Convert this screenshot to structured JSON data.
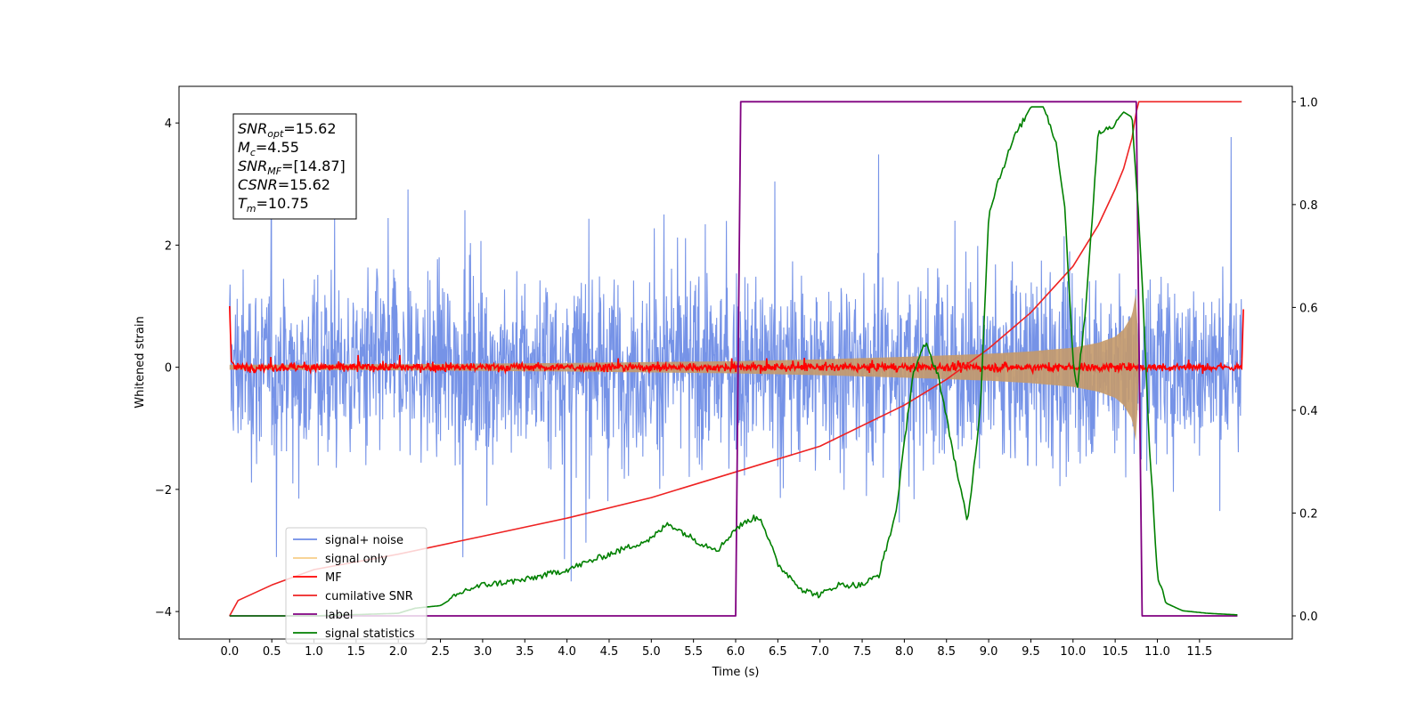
{
  "chart_data": {
    "type": "line",
    "xlabel": "Time (s)",
    "ylabel": "Whitened strain",
    "xlim": [
      -0.6,
      12.6
    ],
    "ylim": [
      -4.45,
      4.6
    ],
    "y2lim": [
      -0.045,
      1.03
    ],
    "xticks": [
      0.0,
      0.5,
      1.0,
      1.5,
      2.0,
      2.5,
      3.0,
      3.5,
      4.0,
      4.5,
      5.0,
      5.5,
      6.0,
      6.5,
      7.0,
      7.5,
      8.0,
      8.5,
      9.0,
      9.5,
      10.0,
      10.5,
      11.0,
      11.5
    ],
    "xtick_labels": [
      "0.0",
      "0.5",
      "1.0",
      "1.5",
      "2.0",
      "2.5",
      "3.0",
      "3.5",
      "4.0",
      "4.5",
      "5.0",
      "5.5",
      "6.0",
      "6.5",
      "7.0",
      "7.5",
      "8.0",
      "8.5",
      "9.0",
      "9.5",
      "10.0",
      "10.5",
      "11.0",
      "11.5"
    ],
    "yticks": [
      -4,
      -2,
      0,
      2,
      4
    ],
    "ytick_labels": [
      "−4",
      "−2",
      "0",
      "2",
      "4"
    ],
    "y2ticks": [
      0.0,
      0.2,
      0.4,
      0.6,
      0.8,
      1.0
    ],
    "y2tick_labels": [
      "0.0",
      "0.2",
      "0.4",
      "0.6",
      "0.8",
      "1.0"
    ],
    "legend_position": "lower-left",
    "series": [
      {
        "name": "signal+ noise",
        "axis": "left",
        "color": "#6f8de6",
        "description": "noise band roughly +/-2 with spikes to about +/-4 over 0-12 s",
        "envelope": {
          "x": [
            0.0,
            12.0
          ],
          "upper_typical": 2.0,
          "lower_typical": -2.0,
          "spike_max": 4.1,
          "spike_min": -4.05
        }
      },
      {
        "name": "signal only",
        "axis": "left",
        "color": "#f5c26b",
        "description": "chirp, amplitude growing until merger near 10.75 s",
        "amplitude": {
          "x": [
            0.0,
            2.0,
            4.0,
            6.0,
            7.0,
            8.0,
            9.0,
            9.5,
            10.0,
            10.3,
            10.5,
            10.6,
            10.7,
            10.75,
            10.78
          ],
          "a": [
            0.04,
            0.05,
            0.07,
            0.1,
            0.13,
            0.17,
            0.22,
            0.26,
            0.32,
            0.4,
            0.5,
            0.62,
            0.85,
            1.25,
            0.0
          ]
        }
      },
      {
        "name": "MF",
        "axis": "left",
        "color": "#ff0000",
        "description": "matched filter output near 0 with small fluctuations",
        "x": [
          0.0,
          0.02,
          0.05,
          12.0,
          12.02
        ],
        "y": [
          1.0,
          0.1,
          0.0,
          0.0,
          0.95
        ]
      },
      {
        "name": "cumilative SNR",
        "axis": "right",
        "color": "#ee2222",
        "x": [
          0.0,
          0.1,
          0.5,
          1.0,
          2.0,
          3.0,
          4.0,
          5.0,
          6.0,
          7.0,
          8.0,
          8.5,
          9.0,
          9.5,
          10.0,
          10.3,
          10.5,
          10.6,
          10.7,
          10.75,
          10.78,
          11.0,
          12.0
        ],
        "y": [
          0.0,
          0.03,
          0.06,
          0.09,
          0.12,
          0.155,
          0.19,
          0.23,
          0.28,
          0.33,
          0.41,
          0.46,
          0.52,
          0.59,
          0.68,
          0.76,
          0.83,
          0.87,
          0.93,
          0.98,
          1.0,
          1.0,
          1.0
        ]
      },
      {
        "name": "label",
        "axis": "right",
        "color": "#800080",
        "x": [
          0.0,
          6.0,
          6.06,
          10.75,
          10.82,
          11.95
        ],
        "y": [
          0.0,
          0.0,
          1.0,
          1.0,
          0.0,
          0.0
        ]
      },
      {
        "name": "signal statistics",
        "axis": "right",
        "color": "#008000",
        "x": [
          0.0,
          1.0,
          2.0,
          2.2,
          2.5,
          2.8,
          3.0,
          3.5,
          4.0,
          4.5,
          5.0,
          5.2,
          5.4,
          5.6,
          5.8,
          6.0,
          6.2,
          6.3,
          6.5,
          6.8,
          7.0,
          7.2,
          7.5,
          7.7,
          7.9,
          8.1,
          8.25,
          8.4,
          8.6,
          8.75,
          8.9,
          9.0,
          9.1,
          9.3,
          9.5,
          9.65,
          9.8,
          9.9,
          10.0,
          10.05,
          10.15,
          10.3,
          10.45,
          10.6,
          10.7,
          10.8,
          10.9,
          11.0,
          11.1,
          11.3,
          11.6,
          11.95
        ],
        "y": [
          0.0,
          0.0,
          0.005,
          0.015,
          0.02,
          0.05,
          0.06,
          0.07,
          0.09,
          0.12,
          0.15,
          0.18,
          0.16,
          0.14,
          0.13,
          0.17,
          0.19,
          0.19,
          0.1,
          0.05,
          0.04,
          0.06,
          0.06,
          0.08,
          0.2,
          0.47,
          0.53,
          0.47,
          0.3,
          0.18,
          0.4,
          0.78,
          0.84,
          0.93,
          0.99,
          0.99,
          0.92,
          0.8,
          0.5,
          0.44,
          0.6,
          0.94,
          0.95,
          0.98,
          0.97,
          0.72,
          0.35,
          0.08,
          0.025,
          0.01,
          0.005,
          0.002
        ]
      }
    ],
    "annotation": [
      {
        "main": "SNR",
        "sub": "opt",
        "rest": "=15.62"
      },
      {
        "main": "M",
        "sub": "c",
        "rest": "=4.55"
      },
      {
        "main": "SNR",
        "sub": "MF",
        "rest": "=[14.87]"
      },
      {
        "main": "CSNR",
        "sub": "",
        "rest": "=15.62"
      },
      {
        "main": "T",
        "sub": "m",
        "rest": "=10.75"
      }
    ]
  }
}
